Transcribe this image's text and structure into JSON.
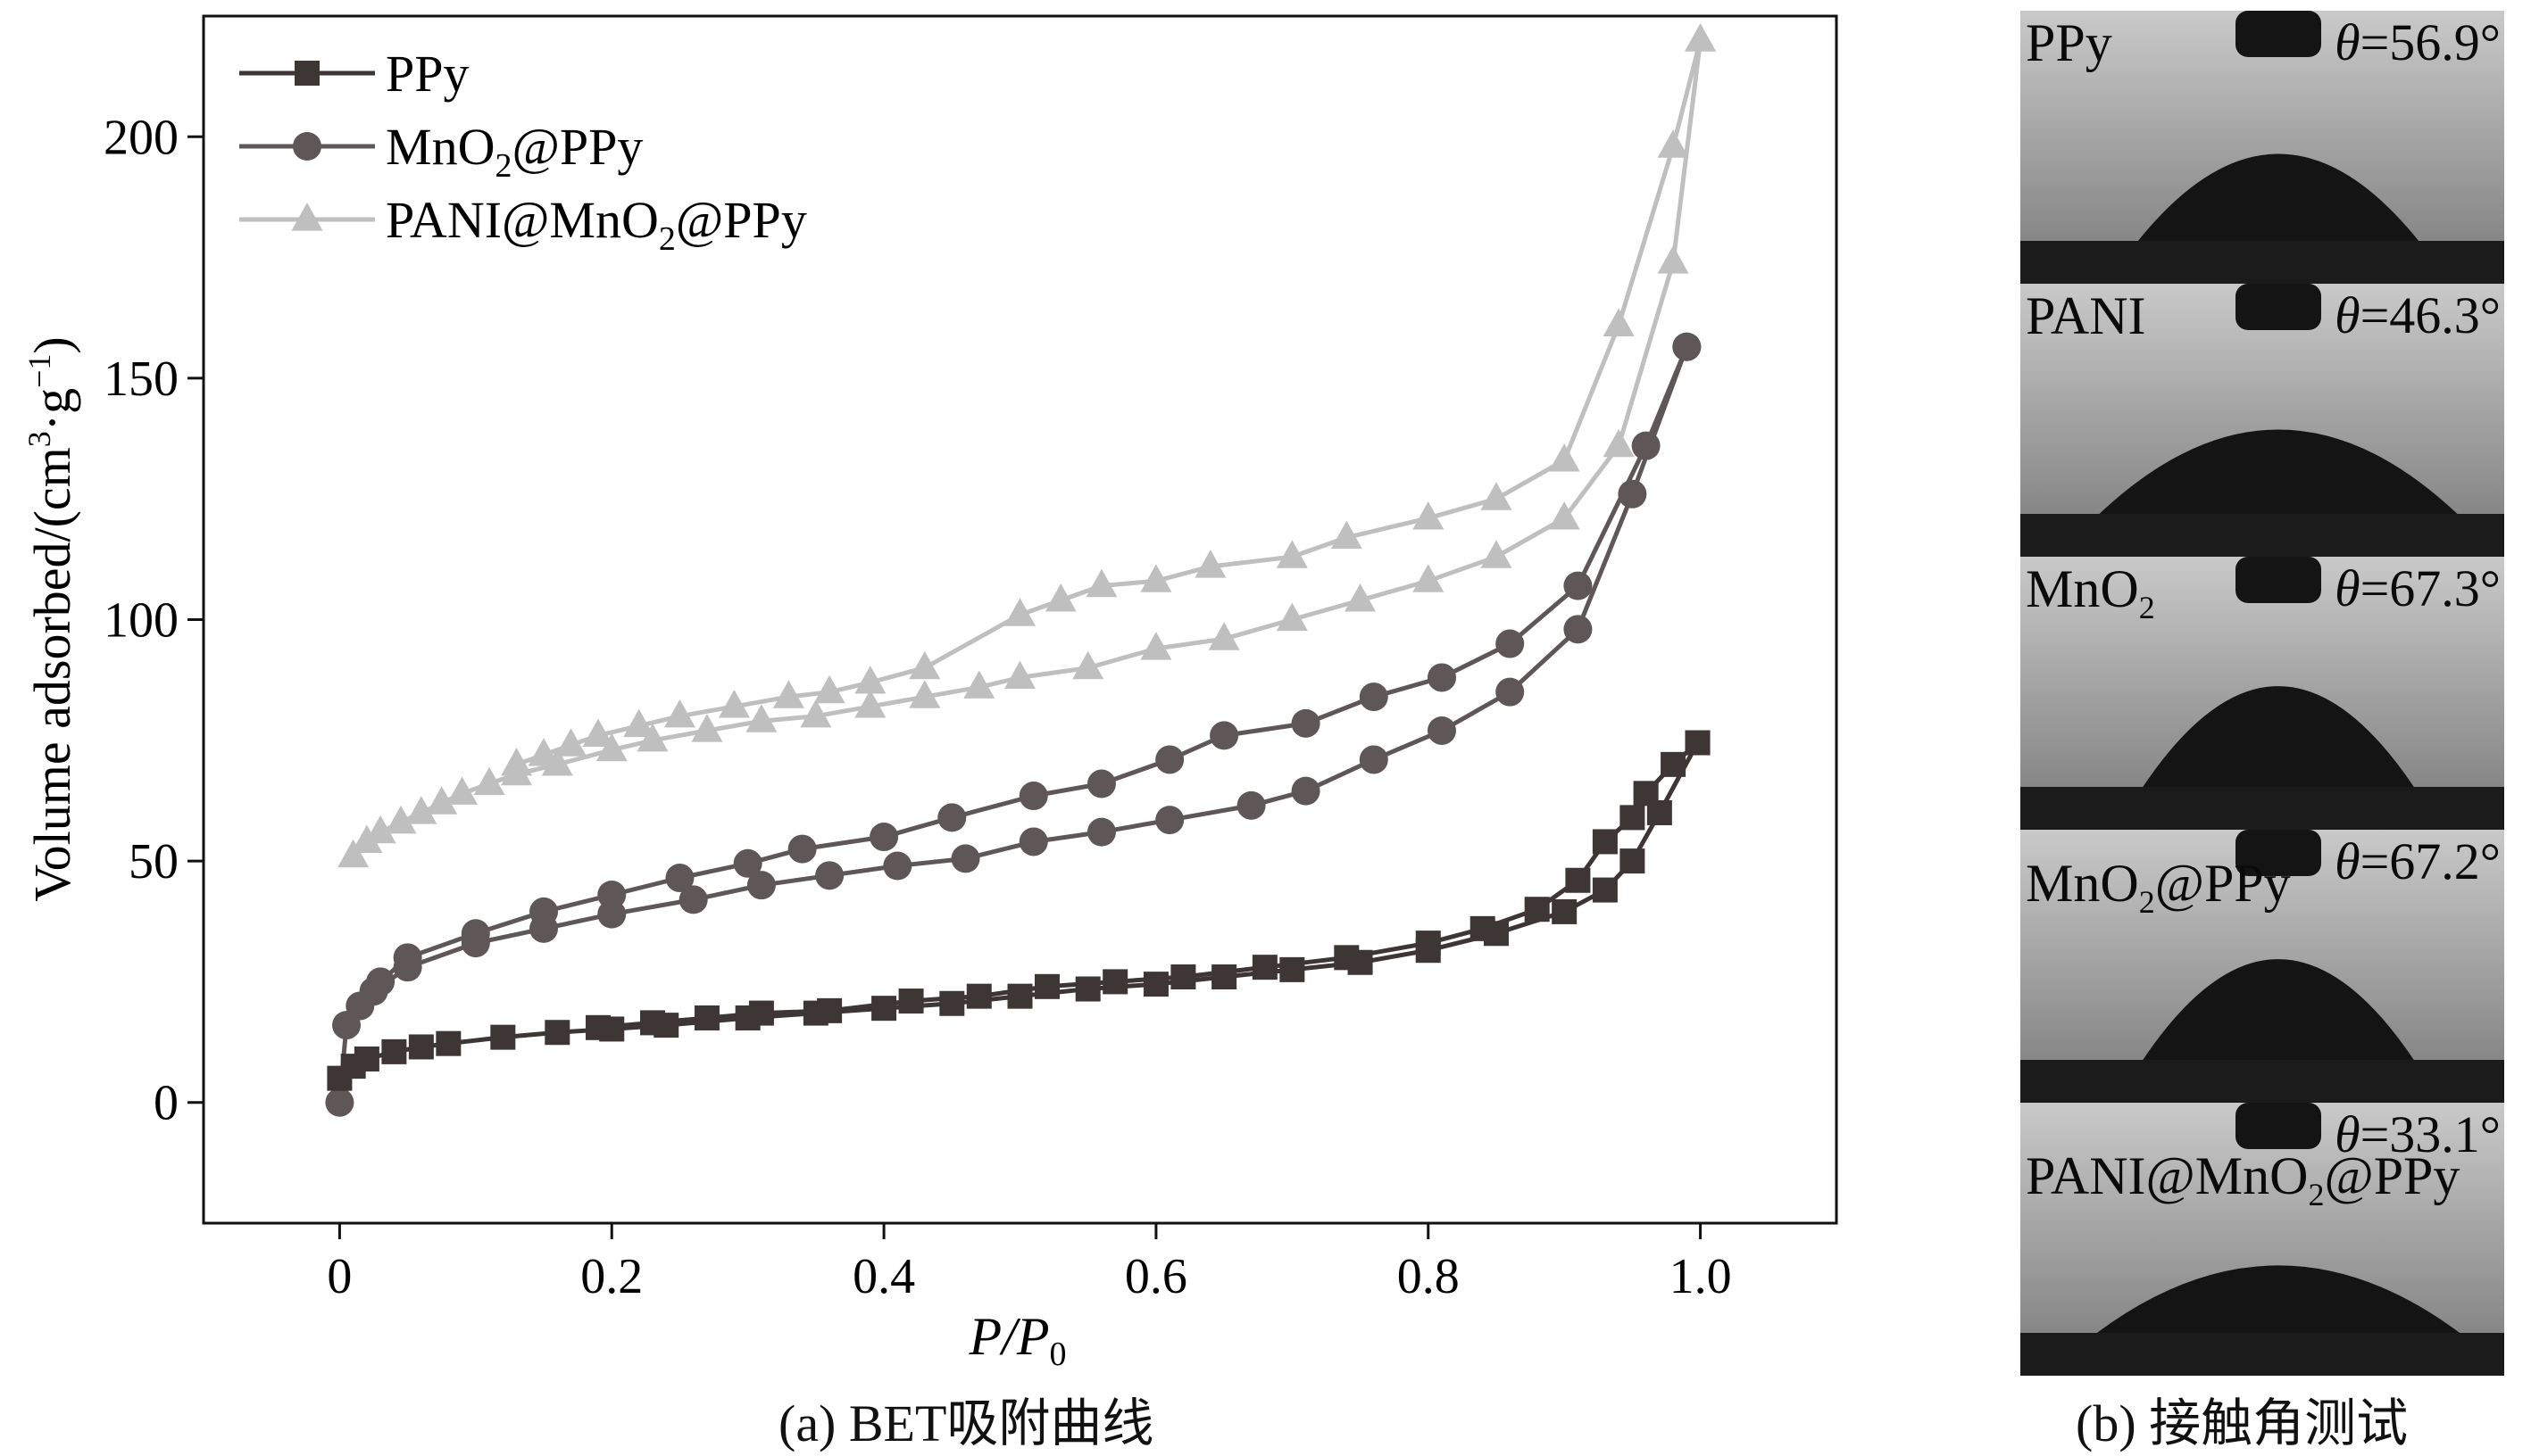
{
  "captions": {
    "a": "(a) BET吸附曲线",
    "b": "(b) 接触角测试"
  },
  "chart_data": {
    "type": "line",
    "title": "",
    "xlabel": "P/P0",
    "xlabel_main": "P/P",
    "xlabel_sub": "0",
    "ylabel": "Volume adsorbed/(cm³·g⁻¹)",
    "ylabel_main": "Volume adsorbed/(cm",
    "ylabel_sup1": "3",
    "ylabel_mid": "·g",
    "ylabel_sup2": "−1",
    "ylabel_end": ")",
    "xlim": [
      -0.1,
      1.1
    ],
    "ylim": [
      -25,
      225
    ],
    "xticks": [
      0,
      0.2,
      0.4,
      0.6,
      0.8,
      1.0
    ],
    "xtick_labels": [
      "0",
      "0.2",
      "0.4",
      "0.6",
      "0.8",
      "1.0"
    ],
    "yticks": [
      0,
      50,
      100,
      150,
      200
    ],
    "ytick_labels": [
      "0",
      "50",
      "100",
      "150",
      "200"
    ],
    "legend_position": "top-left",
    "grid": false,
    "series": [
      {
        "name": "PPy",
        "name_main": "PPy",
        "color": "#3e3535",
        "marker": "square",
        "adsorption": [
          [
            0.0,
            5
          ],
          [
            0.01,
            7.5
          ],
          [
            0.02,
            9
          ],
          [
            0.04,
            10.5
          ],
          [
            0.06,
            11.5
          ],
          [
            0.08,
            12.2
          ],
          [
            0.12,
            13.5
          ],
          [
            0.16,
            14.5
          ],
          [
            0.2,
            15.2
          ],
          [
            0.24,
            16
          ],
          [
            0.3,
            17.5
          ],
          [
            0.35,
            18.5
          ],
          [
            0.4,
            19.5
          ],
          [
            0.45,
            20.5
          ],
          [
            0.5,
            22
          ],
          [
            0.55,
            23.5
          ],
          [
            0.6,
            24.5
          ],
          [
            0.65,
            26
          ],
          [
            0.7,
            27.5
          ],
          [
            0.75,
            29
          ],
          [
            0.8,
            31.5
          ],
          [
            0.85,
            35
          ],
          [
            0.9,
            39.5
          ],
          [
            0.93,
            44
          ],
          [
            0.95,
            50
          ],
          [
            0.97,
            60
          ],
          [
            0.998,
            74.5
          ]
        ],
        "desorption": [
          [
            0.998,
            74.5
          ],
          [
            0.98,
            70
          ],
          [
            0.96,
            64
          ],
          [
            0.95,
            59
          ],
          [
            0.93,
            54
          ],
          [
            0.91,
            46
          ],
          [
            0.88,
            40
          ],
          [
            0.84,
            36
          ],
          [
            0.8,
            33
          ],
          [
            0.74,
            30
          ],
          [
            0.68,
            28
          ],
          [
            0.62,
            26
          ],
          [
            0.57,
            25
          ],
          [
            0.52,
            24
          ],
          [
            0.47,
            22
          ],
          [
            0.42,
            21
          ],
          [
            0.36,
            19
          ],
          [
            0.31,
            18.5
          ],
          [
            0.27,
            17.5
          ],
          [
            0.23,
            16.5
          ],
          [
            0.19,
            15.5
          ]
        ]
      },
      {
        "name": "MnO2@PPy",
        "name_main": "MnO",
        "name_sub": "2",
        "name_tail": "@PPy",
        "color": "#5f5757",
        "marker": "circle",
        "adsorption": [
          [
            0.0,
            0
          ],
          [
            0.005,
            16
          ],
          [
            0.015,
            20
          ],
          [
            0.025,
            23
          ],
          [
            0.05,
            28
          ],
          [
            0.1,
            33
          ],
          [
            0.15,
            36
          ],
          [
            0.2,
            39
          ],
          [
            0.26,
            42
          ],
          [
            0.31,
            45
          ],
          [
            0.36,
            47
          ],
          [
            0.41,
            49
          ],
          [
            0.46,
            50.5
          ],
          [
            0.51,
            54
          ],
          [
            0.56,
            56
          ],
          [
            0.61,
            58.5
          ],
          [
            0.67,
            61.5
          ],
          [
            0.71,
            64.5
          ],
          [
            0.76,
            71
          ],
          [
            0.81,
            77
          ],
          [
            0.86,
            85
          ],
          [
            0.91,
            98
          ],
          [
            0.95,
            126
          ],
          [
            0.99,
            156.5
          ]
        ],
        "desorption": [
          [
            0.99,
            156.5
          ],
          [
            0.96,
            136
          ],
          [
            0.91,
            107
          ],
          [
            0.86,
            95
          ],
          [
            0.81,
            88
          ],
          [
            0.76,
            84
          ],
          [
            0.71,
            78.5
          ],
          [
            0.65,
            76
          ],
          [
            0.61,
            71
          ],
          [
            0.56,
            66
          ],
          [
            0.51,
            63.5
          ],
          [
            0.45,
            59
          ],
          [
            0.4,
            55
          ],
          [
            0.34,
            52.5
          ],
          [
            0.3,
            49.5
          ],
          [
            0.25,
            46.5
          ],
          [
            0.2,
            43
          ],
          [
            0.15,
            39.5
          ],
          [
            0.1,
            35
          ],
          [
            0.05,
            30
          ],
          [
            0.03,
            25
          ]
        ]
      },
      {
        "name": "PANI@MnO2@PPy",
        "name_main": "PANI@MnO",
        "name_sub": "2",
        "name_tail": "@PPy",
        "color": "#bfbfbf",
        "marker": "triangle",
        "adsorption": [
          [
            0.01,
            51
          ],
          [
            0.02,
            54
          ],
          [
            0.03,
            56
          ],
          [
            0.045,
            58
          ],
          [
            0.06,
            60
          ],
          [
            0.075,
            62
          ],
          [
            0.09,
            64
          ],
          [
            0.11,
            66
          ],
          [
            0.13,
            68
          ],
          [
            0.16,
            70
          ],
          [
            0.2,
            73
          ],
          [
            0.23,
            75
          ],
          [
            0.27,
            77
          ],
          [
            0.31,
            79
          ],
          [
            0.35,
            80
          ],
          [
            0.39,
            82
          ],
          [
            0.43,
            84
          ],
          [
            0.47,
            86
          ],
          [
            0.5,
            88
          ],
          [
            0.55,
            90
          ],
          [
            0.6,
            94
          ],
          [
            0.65,
            96
          ],
          [
            0.7,
            100
          ],
          [
            0.75,
            104
          ],
          [
            0.8,
            108
          ],
          [
            0.85,
            113
          ],
          [
            0.9,
            121
          ],
          [
            0.94,
            136
          ],
          [
            0.98,
            174
          ],
          [
            1.0,
            220
          ]
        ],
        "desorption": [
          [
            1.0,
            220
          ],
          [
            0.98,
            198
          ],
          [
            0.94,
            161
          ],
          [
            0.9,
            133
          ],
          [
            0.85,
            125
          ],
          [
            0.8,
            121
          ],
          [
            0.74,
            117
          ],
          [
            0.7,
            113
          ],
          [
            0.64,
            111
          ],
          [
            0.6,
            108
          ],
          [
            0.56,
            107
          ],
          [
            0.53,
            104
          ],
          [
            0.5,
            101
          ],
          [
            0.43,
            90
          ],
          [
            0.39,
            87
          ],
          [
            0.36,
            85
          ],
          [
            0.33,
            84
          ],
          [
            0.29,
            82
          ],
          [
            0.25,
            80
          ],
          [
            0.22,
            78
          ],
          [
            0.19,
            76
          ],
          [
            0.17,
            74
          ],
          [
            0.15,
            72
          ],
          [
            0.13,
            70
          ]
        ]
      }
    ]
  },
  "photos": [
    {
      "label": "PPy",
      "angle": "θ=56.9°",
      "angle_symbol": "θ",
      "angle_value": "=56.9°",
      "drop_radius_frac": 0.5,
      "base_width_frac": 0.58
    },
    {
      "label": "PANI",
      "angle": "θ=46.3°",
      "angle_symbol": "θ",
      "angle_value": "=46.3°",
      "drop_radius_frac": 0.38,
      "base_width_frac": 0.74
    },
    {
      "label_main": "MnO",
      "label_sub": "2",
      "label_tail": "",
      "angle": "θ=67.3°",
      "angle_symbol": "θ",
      "angle_value": "=67.3°",
      "drop_radius_frac": 0.6,
      "base_width_frac": 0.56
    },
    {
      "label_main": "MnO",
      "label_sub": "2",
      "label_tail": "@PPy",
      "angle": "θ=67.2°",
      "angle_symbol": "θ",
      "angle_value": "=67.2°",
      "drop_radius_frac": 0.6,
      "base_width_frac": 0.56
    },
    {
      "label_main": "PANI@MnO",
      "label_sub": "2",
      "label_tail": "@PPy",
      "angle": "θ=33.1°",
      "angle_symbol": "θ",
      "angle_value": "=33.1°",
      "drop_radius_frac": 0.3,
      "base_width_frac": 0.75
    }
  ],
  "colors": {
    "photo_bg_top": "#c9c9c9",
    "photo_bg_bottom": "#7a7a7a",
    "drop": "#141414",
    "substrate": "#1b1b1b"
  }
}
